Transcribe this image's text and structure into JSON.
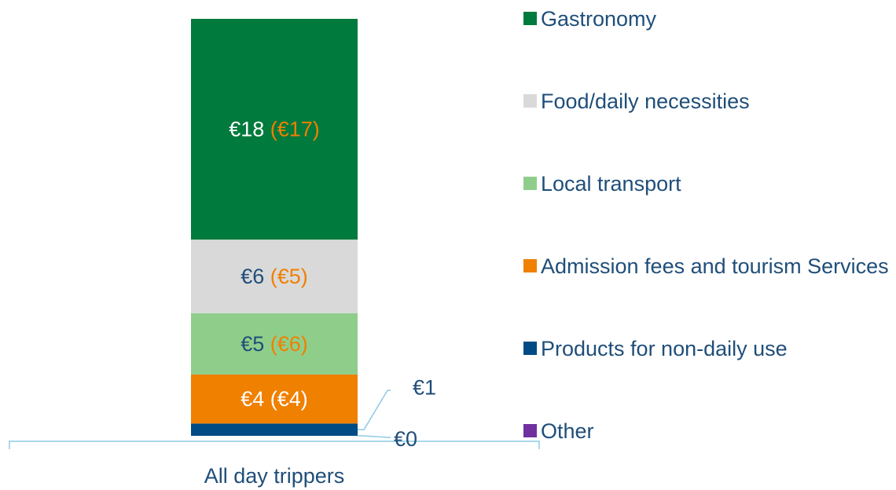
{
  "chart_data": {
    "type": "stacked_bar",
    "categories": [
      "All day trippers"
    ],
    "series": [
      {
        "name": "Gastronomy",
        "color": "#007a3d",
        "values": [
          18
        ],
        "value_labels": [
          "€18"
        ],
        "prior_value_labels": [
          "(€17)"
        ],
        "label_color": "#ffffff",
        "prior_label_color": "#f08000"
      },
      {
        "name": "Food/daily necessities",
        "color": "#d9d9d9",
        "values": [
          6
        ],
        "value_labels": [
          "€6"
        ],
        "prior_value_labels": [
          "(€5)"
        ],
        "label_color": "#1f4e79",
        "prior_label_color": "#f08000"
      },
      {
        "name": "Local transport",
        "color": "#8fce8a",
        "values": [
          5
        ],
        "value_labels": [
          "€5"
        ],
        "prior_value_labels": [
          "(€6)"
        ],
        "label_color": "#1f4e79",
        "prior_label_color": "#f08000"
      },
      {
        "name": "Admission fees and tourism Services",
        "color": "#f08000",
        "values": [
          4
        ],
        "value_labels": [
          "€4"
        ],
        "prior_value_labels": [
          "(€4)"
        ],
        "label_color": "#ffffff",
        "prior_label_color": "#ffffff"
      },
      {
        "name": "Products for non-daily use",
        "color": "#004b85",
        "values": [
          1
        ],
        "value_labels": [
          "€1"
        ],
        "label_color": "#1f4e79"
      },
      {
        "name": "Other",
        "color": "#7030a0",
        "values": [
          0
        ],
        "value_labels": [
          "€0"
        ],
        "label_color": "#1f4e79"
      }
    ]
  }
}
